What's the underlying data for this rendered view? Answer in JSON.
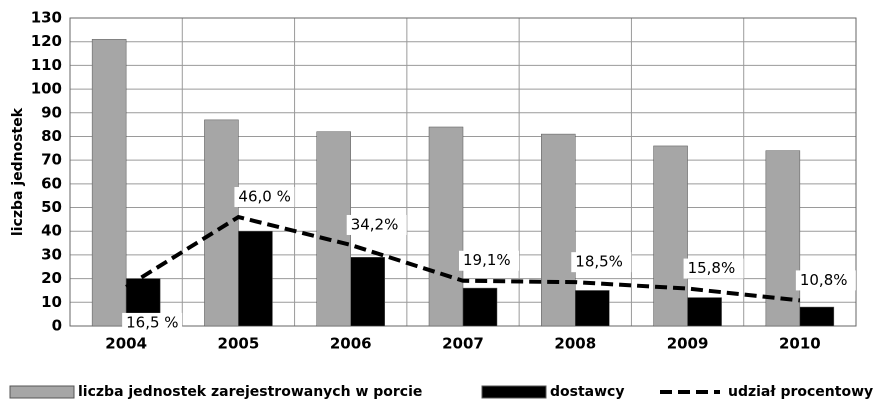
{
  "chart_data": {
    "type": "bar",
    "y_label": "liczba jednostek",
    "categories": [
      "2004",
      "2005",
      "2006",
      "2007",
      "2008",
      "2009",
      "2010"
    ],
    "series": [
      {
        "name": "liczba jednostek zarejestrowanych w porcie",
        "color": "#a6a6a6",
        "type": "bar",
        "values": [
          121,
          87,
          82,
          84,
          81,
          76,
          74
        ]
      },
      {
        "name": "dostawcy",
        "color": "#000000",
        "type": "bar",
        "values": [
          20,
          40,
          29,
          16,
          15,
          12,
          8
        ]
      },
      {
        "name": "udział procentowy",
        "color": "#000000",
        "type": "line",
        "dashed": true,
        "values": [
          16.5,
          46.0,
          34.2,
          19.1,
          18.5,
          15.8,
          10.8
        ],
        "value_labels": [
          "16,5 %",
          "46,0 %",
          "34,2%",
          "19,1%",
          "18,5%",
          "15,8%",
          "10,8%"
        ]
      }
    ],
    "ylim": [
      0,
      130
    ],
    "yticks": [
      0,
      10,
      20,
      30,
      40,
      50,
      60,
      70,
      80,
      90,
      100,
      110,
      120,
      130
    ],
    "grid": true,
    "legend": "bottom"
  }
}
